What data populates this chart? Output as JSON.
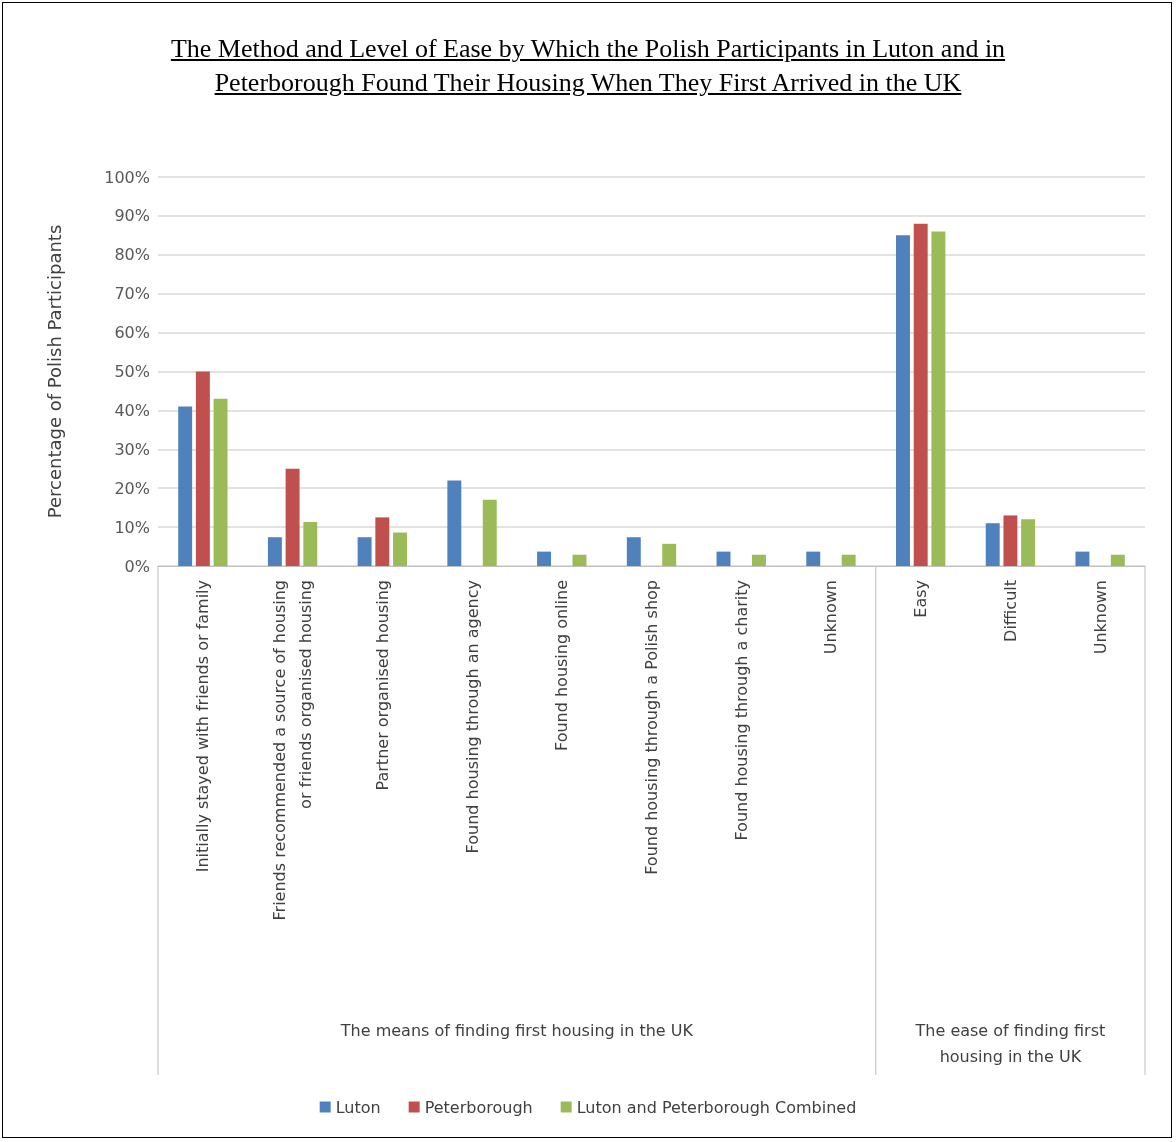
{
  "chart_data": {
    "type": "bar",
    "title": "The Method and Level of Ease by Which the Polish Participants in Luton and in Peterborough Found Their Housing When They First Arrived in the UK",
    "ylabel": "Percentage of Polish Participants",
    "categories": [
      "Initially stayed with friends or family",
      "Friends recommended a source of housing or friends organised housing",
      "Partner organised housing",
      "Found housing through an agency",
      "Found housing online",
      "Found housing through a Polish shop",
      "Found housing through a charity",
      "Unknown",
      "Easy",
      "Difficult",
      "Unknown"
    ],
    "series": [
      {
        "name": "Luton",
        "color": "#4f81bd",
        "values": [
          41,
          7.4,
          7.4,
          22,
          3.7,
          7.4,
          3.7,
          3.7,
          85,
          11,
          3.7
        ]
      },
      {
        "name": "Peterborough",
        "color": "#c0504d",
        "values": [
          50,
          25,
          12.5,
          null,
          null,
          null,
          null,
          null,
          88,
          13,
          null
        ]
      },
      {
        "name": "Luton and Peterborough Combined",
        "color": "#9bbb59",
        "values": [
          43,
          11.3,
          8.6,
          17,
          2.9,
          5.7,
          2.9,
          2.9,
          86,
          12,
          2.9
        ]
      }
    ],
    "annotations": [
      "The means of finding first housing in the UK",
      "The ease of finding first housing in the UK"
    ],
    "ylim": [
      0,
      100
    ],
    "yticks": [
      {
        "value": 0,
        "label": "0%"
      },
      {
        "value": 10,
        "label": "10%"
      },
      {
        "value": 20,
        "label": "20%"
      },
      {
        "value": 30,
        "label": "30%"
      },
      {
        "value": 40,
        "label": "40%"
      },
      {
        "value": 50,
        "label": "50%"
      },
      {
        "value": 60,
        "label": "60%"
      },
      {
        "value": 70,
        "label": "70%"
      },
      {
        "value": 80,
        "label": "80%"
      },
      {
        "value": 90,
        "label": "90%"
      },
      {
        "value": 100,
        "label": "100%"
      }
    ],
    "grid": "y",
    "legend": "bottom"
  }
}
